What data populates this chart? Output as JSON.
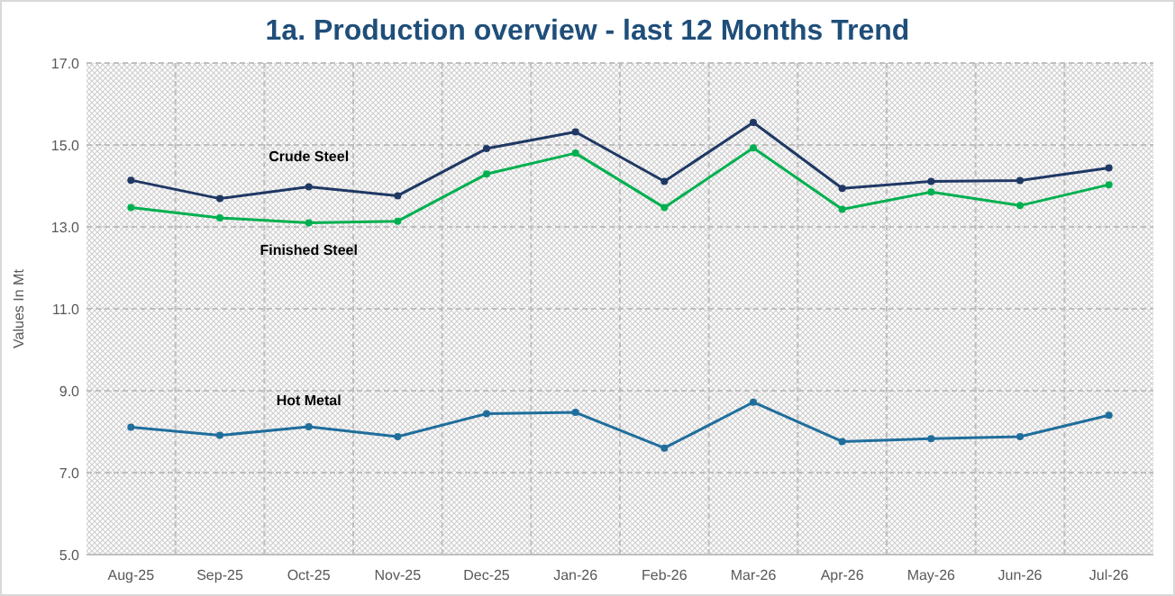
{
  "chart_data": {
    "type": "line",
    "title": "1a. Production overview - last 12 Months Trend",
    "ylabel": "Values In Mt",
    "categories": [
      "Aug-25",
      "Sep-25",
      "Oct-25",
      "Nov-25",
      "Dec-25",
      "Jan-26",
      "Feb-26",
      "Mar-26",
      "Apr-26",
      "May-26",
      "Jun-26",
      "Jul-26"
    ],
    "series": [
      {
        "name": "Crude Steel",
        "color": "#1f3864",
        "values": [
          14.14,
          13.69,
          13.98,
          13.76,
          14.91,
          15.32,
          14.11,
          15.55,
          13.94,
          14.11,
          14.13,
          14.44
        ]
      },
      {
        "name": "Finished Steel",
        "color": "#00b050",
        "values": [
          13.47,
          13.22,
          13.1,
          13.14,
          14.29,
          14.8,
          13.47,
          14.93,
          13.43,
          13.85,
          13.52,
          14.03
        ]
      },
      {
        "name": "Hot Metal",
        "color": "#1f6e9c",
        "values": [
          8.11,
          7.91,
          8.12,
          7.88,
          8.44,
          8.47,
          7.6,
          8.72,
          7.76,
          7.83,
          7.88,
          8.4
        ]
      }
    ],
    "ylim": [
      5,
      17
    ],
    "yticks": [
      {
        "value": 5,
        "label": "5.0"
      },
      {
        "value": 7,
        "label": "7.0"
      },
      {
        "value": 9,
        "label": "9.0"
      },
      {
        "value": 11,
        "label": "11.0"
      },
      {
        "value": 13,
        "label": "13.0"
      },
      {
        "value": 15,
        "label": "15.0"
      },
      {
        "value": 17,
        "label": "17.0"
      }
    ],
    "grid": true,
    "marker": "circle",
    "line_style": "solid"
  }
}
